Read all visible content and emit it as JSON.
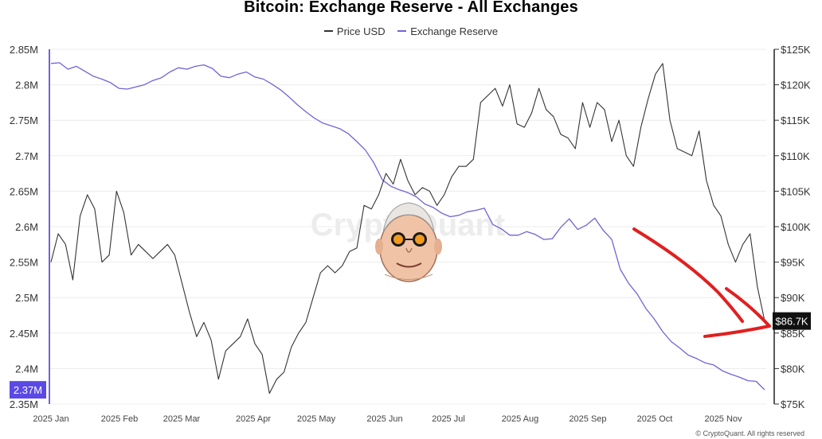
{
  "chart_data": {
    "type": "line",
    "title": "Bitcoin: Exchange Reserve - All Exchanges",
    "series": [
      {
        "name": "Price USD",
        "color": "#333333",
        "axis": "right",
        "values": [
          95000,
          99000,
          97500,
          92500,
          101500,
          104500,
          102500,
          95000,
          96000,
          105000,
          102000,
          96000,
          97500,
          96500,
          95500,
          96500,
          97500,
          96000,
          92000,
          88000,
          84500,
          86500,
          84000,
          78500,
          82500,
          83500,
          84500,
          87000,
          83500,
          82000,
          76500,
          78500,
          79500,
          83000,
          85000,
          86500,
          90000,
          93500,
          94500,
          93500,
          94500,
          96500,
          97000,
          103000,
          102500,
          104500,
          107500,
          106000,
          109500,
          106500,
          104500,
          105500,
          105000,
          103000,
          104500,
          107000,
          108500,
          108500,
          109500,
          117500,
          118500,
          119500,
          117000,
          120000,
          114500,
          114000,
          116000,
          119500,
          116500,
          115500,
          113000,
          112500,
          111000,
          117500,
          114000,
          117500,
          116500,
          112000,
          115000,
          110000,
          108500,
          114000,
          118000,
          121500,
          123000,
          115000,
          111000,
          110500,
          110000,
          113500,
          106500,
          103000,
          101500,
          97500,
          95000,
          97500,
          99000,
          91500,
          86700
        ]
      },
      {
        "name": "Exchange Reserve",
        "color": "#6e64d8",
        "axis": "left",
        "values": [
          2.83,
          2.831,
          2.822,
          2.826,
          2.819,
          2.812,
          2.808,
          2.803,
          2.795,
          2.794,
          2.797,
          2.8,
          2.806,
          2.81,
          2.818,
          2.824,
          2.822,
          2.826,
          2.828,
          2.823,
          2.812,
          2.81,
          2.815,
          2.818,
          2.811,
          2.808,
          2.801,
          2.793,
          2.783,
          2.772,
          2.762,
          2.753,
          2.746,
          2.742,
          2.738,
          2.731,
          2.72,
          2.708,
          2.69,
          2.666,
          2.657,
          2.652,
          2.648,
          2.642,
          2.632,
          2.627,
          2.619,
          2.614,
          2.616,
          2.621,
          2.623,
          2.626,
          2.603,
          2.597,
          2.588,
          2.588,
          2.593,
          2.589,
          2.582,
          2.583,
          2.599,
          2.611,
          2.596,
          2.602,
          2.612,
          2.595,
          2.582,
          2.54,
          2.52,
          2.505,
          2.485,
          2.47,
          2.452,
          2.438,
          2.429,
          2.419,
          2.414,
          2.408,
          2.405,
          2.397,
          2.392,
          2.388,
          2.383,
          2.382,
          2.37
        ]
      }
    ],
    "x_labels": [
      "2025 Jan",
      "2025 Feb",
      "2025 Mar",
      "2025 Apr",
      "2025 May",
      "2025 Jun",
      "2025 Jul",
      "2025 Aug",
      "2025 Sep",
      "2025 Oct",
      "2025 Nov"
    ],
    "y_left": {
      "min": 2.35,
      "max": 2.85,
      "ticks": [
        "2.85M",
        "2.8M",
        "2.75M",
        "2.7M",
        "2.65M",
        "2.6M",
        "2.55M",
        "2.5M",
        "2.45M",
        "2.4M",
        "2.35M"
      ],
      "current": "2.37M",
      "current_value": 2.37
    },
    "y_right": {
      "min": 75000,
      "max": 125000,
      "ticks": [
        "$125K",
        "$120K",
        "$115K",
        "$110K",
        "$105K",
        "$100K",
        "$95K",
        "$90K",
        "$85K",
        "$80K",
        "$75K"
      ],
      "current": "$86.7K",
      "current_value": 86700
    },
    "watermark": "CryptoQuant",
    "annotation": "red arrow pointing down-right"
  },
  "footer": "© CryptoQuant. All rights reserved"
}
